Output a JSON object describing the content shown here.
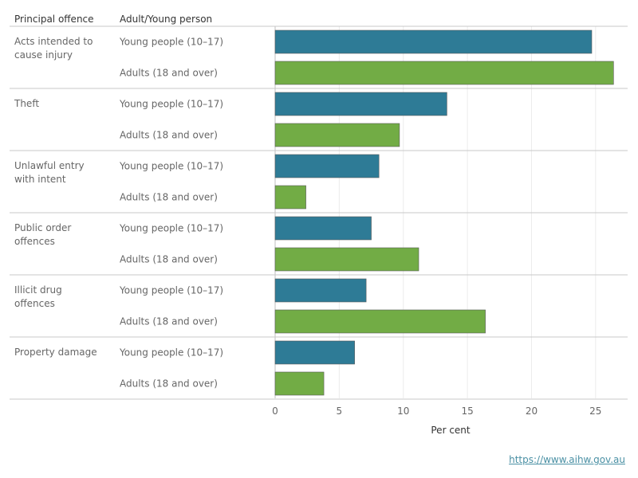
{
  "chart_data": {
    "type": "bar",
    "orientation": "horizontal",
    "column_headers": [
      "Principal offence",
      "Adult/Young person"
    ],
    "xlabel": "Per cent",
    "xlim": [
      0,
      27.5
    ],
    "x_ticks": [
      0,
      5,
      10,
      15,
      20,
      25
    ],
    "grid": true,
    "categories": [
      "Acts intended to cause injury",
      "Theft",
      "Unlawful entry with intent",
      "Public order offences",
      "Illicit drug offences",
      "Property damage"
    ],
    "series": [
      {
        "name": "Young people (10–17)",
        "color": "#2e7b96",
        "values": [
          24.7,
          13.4,
          8.1,
          7.5,
          7.1,
          6.2
        ]
      },
      {
        "name": "Adults (18 and over)",
        "color": "#72ac45",
        "values": [
          26.4,
          9.7,
          2.4,
          11.2,
          16.4,
          3.8
        ]
      }
    ]
  },
  "source": {
    "link_text": "https://www.aihw.gov.au"
  }
}
